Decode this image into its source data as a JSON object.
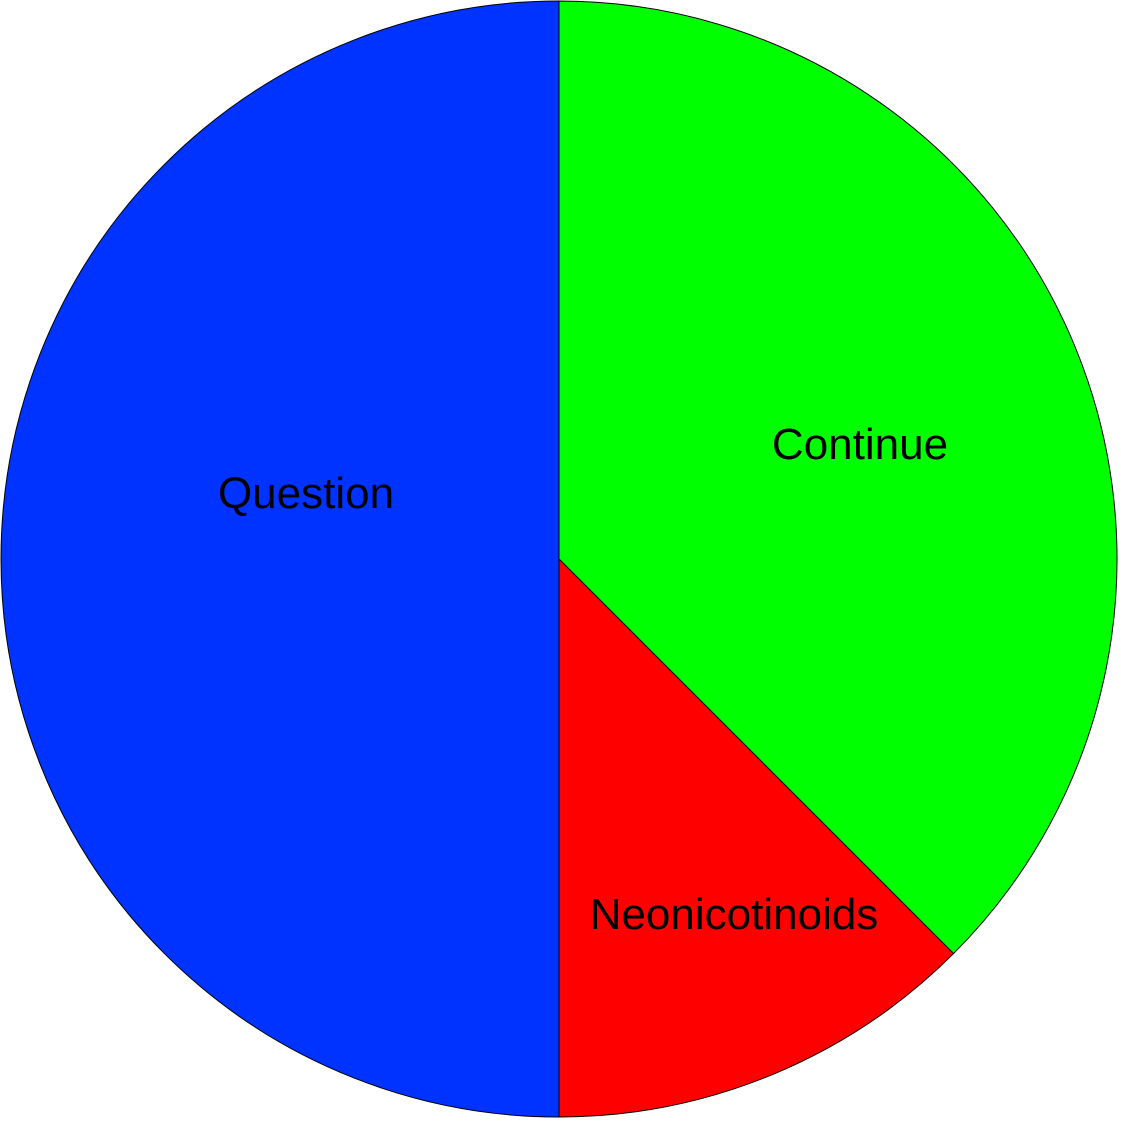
{
  "chart_data": {
    "type": "pie",
    "title": "",
    "start_angle_deg": 0,
    "direction": "clockwise",
    "slices": [
      {
        "label": "Continue",
        "value": 37.5,
        "color": "#00ff00"
      },
      {
        "label": "Neonicotinoids",
        "value": 12.5,
        "color": "#ff0000"
      },
      {
        "label": "Question",
        "value": 50,
        "color": "#0033ff"
      }
    ]
  }
}
